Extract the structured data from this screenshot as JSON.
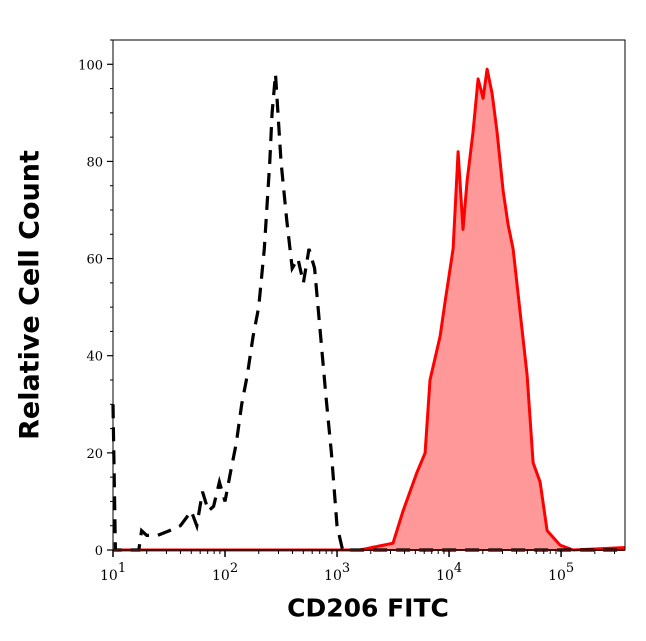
{
  "chart_data": {
    "type": "area",
    "title": "",
    "xlabel": "CD206 FITC",
    "ylabel": "Relative Cell Count",
    "xscale": "log",
    "xlim": [
      10,
      372000
    ],
    "ylim": [
      0,
      105
    ],
    "xticks": [
      {
        "value": 10,
        "base": "10",
        "exp": "1"
      },
      {
        "value": 100,
        "base": "10",
        "exp": "2"
      },
      {
        "value": 1000,
        "base": "10",
        "exp": "3"
      },
      {
        "value": 10000,
        "base": "10",
        "exp": "4"
      },
      {
        "value": 100000,
        "base": "10",
        "exp": "5"
      }
    ],
    "yticks": [
      0,
      20,
      40,
      60,
      80,
      100
    ],
    "grid": false,
    "series": [
      {
        "style": "dashed-line",
        "color": "#000000",
        "x": [
          10,
          10.5,
          17,
          18,
          20,
          25,
          32,
          40,
          50,
          56,
          63,
          71,
          79,
          89,
          100,
          112,
          126,
          141,
          158,
          178,
          200,
          224,
          251,
          263,
          282,
          316,
          355,
          398,
          447,
          501,
          562,
          631,
          708,
          794,
          891,
          1000,
          1122,
          372000
        ],
        "y": [
          30,
          0,
          0,
          4,
          3,
          3,
          4,
          5,
          8,
          5,
          12,
          8,
          9,
          14,
          10,
          16,
          22,
          30,
          36,
          44,
          50,
          62,
          80,
          90,
          98,
          80,
          68,
          58,
          60,
          55,
          62,
          58,
          45,
          32,
          20,
          5,
          0,
          0
        ]
      },
      {
        "style": "filled",
        "color": "#ff0000",
        "fill": "#ff9999",
        "x": [
          10,
          1603,
          3162,
          3880,
          5176,
          6105,
          6760,
          8318,
          9206,
          10860,
          12030,
          13330,
          14480,
          16370,
          18150,
          20120,
          21840,
          24210,
          26840,
          30360,
          33650,
          37280,
          43050,
          49680,
          56230,
          65010,
          75000,
          98000,
          128000,
          358000,
          372000
        ],
        "y": [
          0,
          0,
          1.4,
          8,
          16,
          20,
          35,
          44,
          51,
          62,
          82,
          66,
          76,
          86,
          97,
          93,
          99,
          94,
          86,
          74,
          67,
          62,
          49,
          36,
          18,
          14,
          4,
          1,
          0,
          0.5,
          0.5
        ]
      }
    ]
  }
}
